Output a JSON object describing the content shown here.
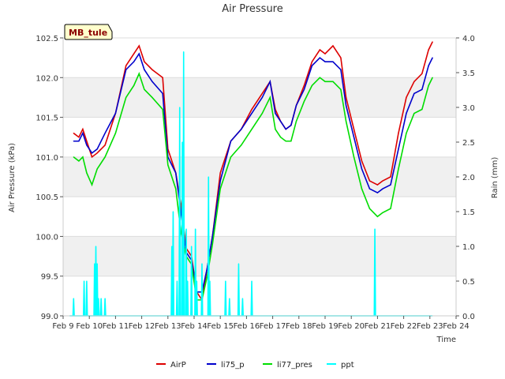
{
  "chart_data": {
    "type": "line",
    "title": "Air Pressure",
    "site_label": "MB_tule",
    "xlabel": "Time",
    "ylabel": "Air Pressure (kPa)",
    "y2label": "Rain (mm)",
    "ylim": [
      99.0,
      102.5
    ],
    "y2lim": [
      0.0,
      4.0
    ],
    "xlim": [
      9,
      24
    ],
    "x_ticks": [
      9,
      10,
      11,
      12,
      13,
      14,
      15,
      16,
      17,
      18,
      19,
      20,
      21,
      22,
      23,
      24
    ],
    "x_tick_labels": [
      "Feb 9",
      "Feb 10",
      "Feb 11",
      "Feb 12",
      "Feb 13",
      "Feb 14",
      "Feb 15",
      "Feb 16",
      "Feb 17",
      "Feb 18",
      "Feb 19",
      "Feb 20",
      "Feb 21",
      "Feb 22",
      "Feb 23",
      "Feb 24"
    ],
    "y_ticks": [
      "99.0",
      "99.5",
      "100.0",
      "100.5",
      "101.0",
      "101.5",
      "102.0",
      "102.5"
    ],
    "y2_ticks": [
      "0.0",
      "0.5",
      "1.0",
      "1.5",
      "2.0",
      "2.5",
      "3.0",
      "3.5",
      "4.0"
    ],
    "series": [
      {
        "name": "AirP",
        "color": "#dd0000",
        "axis": "left",
        "x": [
          9.4,
          9.6,
          9.75,
          9.9,
          10.1,
          10.3,
          10.6,
          11.0,
          11.4,
          11.7,
          11.9,
          12.1,
          12.4,
          12.8,
          13.0,
          13.3,
          13.5,
          13.7,
          13.9,
          14.1,
          14.3,
          14.5,
          14.7,
          15.0,
          15.4,
          15.8,
          16.2,
          16.6,
          16.9,
          17.1,
          17.3,
          17.5,
          17.7,
          17.9,
          18.2,
          18.5,
          18.8,
          19.0,
          19.3,
          19.6,
          19.8,
          20.1,
          20.4,
          20.7,
          21.0,
          21.2,
          21.5,
          21.8,
          22.1,
          22.4,
          22.7,
          22.95,
          23.1
        ],
        "y": [
          101.3,
          101.25,
          101.35,
          101.2,
          101.0,
          101.05,
          101.15,
          101.55,
          102.15,
          102.3,
          102.4,
          102.2,
          102.1,
          102.0,
          101.1,
          100.8,
          100.4,
          99.85,
          99.75,
          99.3,
          99.2,
          99.6,
          100.0,
          100.8,
          101.2,
          101.35,
          101.6,
          101.8,
          101.95,
          101.6,
          101.45,
          101.35,
          101.4,
          101.65,
          101.9,
          102.2,
          102.35,
          102.3,
          102.4,
          102.25,
          101.75,
          101.35,
          100.95,
          100.7,
          100.65,
          100.7,
          100.75,
          101.3,
          101.75,
          101.95,
          102.05,
          102.35,
          102.45
        ]
      },
      {
        "name": "li75_p",
        "color": "#0000cc",
        "axis": "left",
        "x": [
          9.4,
          9.6,
          9.75,
          9.9,
          10.1,
          10.3,
          10.6,
          11.0,
          11.4,
          11.7,
          11.9,
          12.1,
          12.4,
          12.8,
          13.0,
          13.3,
          13.5,
          13.7,
          13.9,
          14.1,
          14.3,
          14.5,
          14.7,
          15.0,
          15.4,
          15.8,
          16.2,
          16.6,
          16.9,
          17.1,
          17.3,
          17.5,
          17.7,
          17.9,
          18.2,
          18.5,
          18.8,
          19.0,
          19.3,
          19.6,
          19.8,
          20.1,
          20.4,
          20.7,
          21.0,
          21.2,
          21.5,
          21.8,
          22.1,
          22.4,
          22.7,
          22.95,
          23.1
        ],
        "y": [
          101.2,
          101.2,
          101.3,
          101.15,
          101.05,
          101.1,
          101.3,
          101.55,
          102.1,
          102.2,
          102.3,
          102.1,
          101.95,
          101.8,
          101.0,
          100.8,
          100.3,
          99.8,
          99.7,
          99.3,
          99.3,
          99.6,
          100.0,
          100.7,
          101.2,
          101.35,
          101.55,
          101.75,
          101.95,
          101.55,
          101.45,
          101.35,
          101.4,
          101.65,
          101.85,
          102.15,
          102.25,
          102.2,
          102.2,
          102.1,
          101.65,
          101.25,
          100.85,
          100.6,
          100.55,
          100.6,
          100.65,
          101.1,
          101.55,
          101.8,
          101.85,
          102.15,
          102.25
        ]
      },
      {
        "name": "li77_pres",
        "color": "#00dd00",
        "axis": "left",
        "x": [
          9.4,
          9.6,
          9.75,
          9.9,
          10.1,
          10.3,
          10.6,
          11.0,
          11.4,
          11.7,
          11.9,
          12.1,
          12.4,
          12.8,
          13.0,
          13.3,
          13.5,
          13.7,
          13.9,
          14.1,
          14.3,
          14.5,
          14.7,
          15.0,
          15.4,
          15.8,
          16.2,
          16.6,
          16.9,
          17.1,
          17.3,
          17.5,
          17.7,
          17.9,
          18.2,
          18.5,
          18.8,
          19.0,
          19.3,
          19.6,
          19.8,
          20.1,
          20.4,
          20.7,
          21.0,
          21.2,
          21.5,
          21.8,
          22.1,
          22.4,
          22.7,
          22.95,
          23.1
        ],
        "y": [
          101.0,
          100.95,
          101.0,
          100.8,
          100.65,
          100.85,
          101.0,
          101.3,
          101.75,
          101.9,
          102.05,
          101.85,
          101.75,
          101.6,
          100.9,
          100.6,
          100.05,
          99.75,
          99.65,
          99.2,
          99.2,
          99.5,
          99.9,
          100.6,
          101.0,
          101.15,
          101.35,
          101.55,
          101.75,
          101.35,
          101.25,
          101.2,
          101.2,
          101.45,
          101.7,
          101.9,
          102.0,
          101.95,
          101.95,
          101.85,
          101.45,
          101.0,
          100.6,
          100.35,
          100.25,
          100.3,
          100.35,
          100.85,
          101.3,
          101.55,
          101.6,
          101.9,
          102.0
        ]
      },
      {
        "name": "ppt",
        "color": "#00ffff",
        "axis": "right",
        "x": [
          9.4,
          9.8,
          9.9,
          10.2,
          10.25,
          10.3,
          10.35,
          10.45,
          10.6,
          13.15,
          13.2,
          13.35,
          13.45,
          13.55,
          13.6,
          13.7,
          13.75,
          13.9,
          14.05,
          14.1,
          14.3,
          14.55,
          14.6,
          15.2,
          15.35,
          15.7,
          15.85,
          16.2,
          20.9
        ],
        "y": [
          0.25,
          0.5,
          0.5,
          0.75,
          1.0,
          0.75,
          0.25,
          0.25,
          0.25,
          1.0,
          1.5,
          0.5,
          3.0,
          2.5,
          3.8,
          1.25,
          0.5,
          1.0,
          1.25,
          0.5,
          0.75,
          2.0,
          0.5,
          0.5,
          0.25,
          0.75,
          0.25,
          0.5,
          1.25
        ]
      }
    ],
    "legend": [
      "AirP",
      "li75_p",
      "li77_pres",
      "ppt"
    ],
    "legend_position": "bottom-center",
    "grid": true
  }
}
